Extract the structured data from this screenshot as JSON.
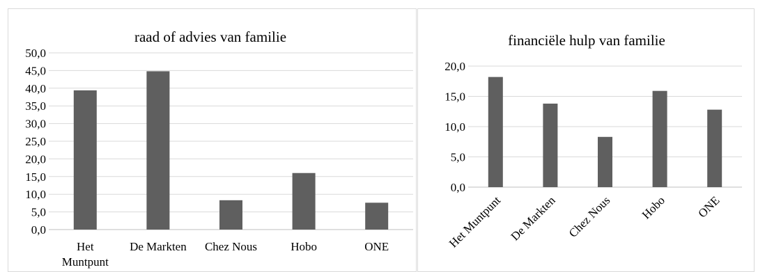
{
  "chart_data": [
    {
      "type": "bar",
      "title": "raad of advies van familie",
      "categories": [
        "Het Muntpunt",
        "De Markten",
        "Chez Nous",
        "Hobo",
        "ONE"
      ],
      "category_lines": [
        [
          "Het",
          "Muntpunt"
        ],
        [
          "De Markten"
        ],
        [
          "Chez Nous"
        ],
        [
          "Hobo"
        ],
        [
          "ONE"
        ]
      ],
      "values": [
        39.4,
        44.8,
        8.3,
        16.0,
        7.6
      ],
      "ylim": [
        0,
        50
      ],
      "yticks": [
        "0,0",
        "5,0",
        "10,0",
        "15,0",
        "20,0",
        "25,0",
        "30,0",
        "35,0",
        "40,0",
        "45,0",
        "50,0"
      ],
      "grid": true,
      "color": "#5f5f5f"
    },
    {
      "type": "bar",
      "title": "financiële hulp van familie",
      "categories": [
        "Het Muntpunt",
        "De Markten",
        "Chez Nous",
        "Hobo",
        "ONE"
      ],
      "values": [
        18.2,
        13.8,
        8.3,
        15.9,
        12.8
      ],
      "ylim": [
        0,
        20
      ],
      "yticks": [
        "0,0",
        "5,0",
        "10,0",
        "15,0",
        "20,0"
      ],
      "grid": true,
      "label_rotation": -45,
      "color": "#5f5f5f"
    }
  ]
}
